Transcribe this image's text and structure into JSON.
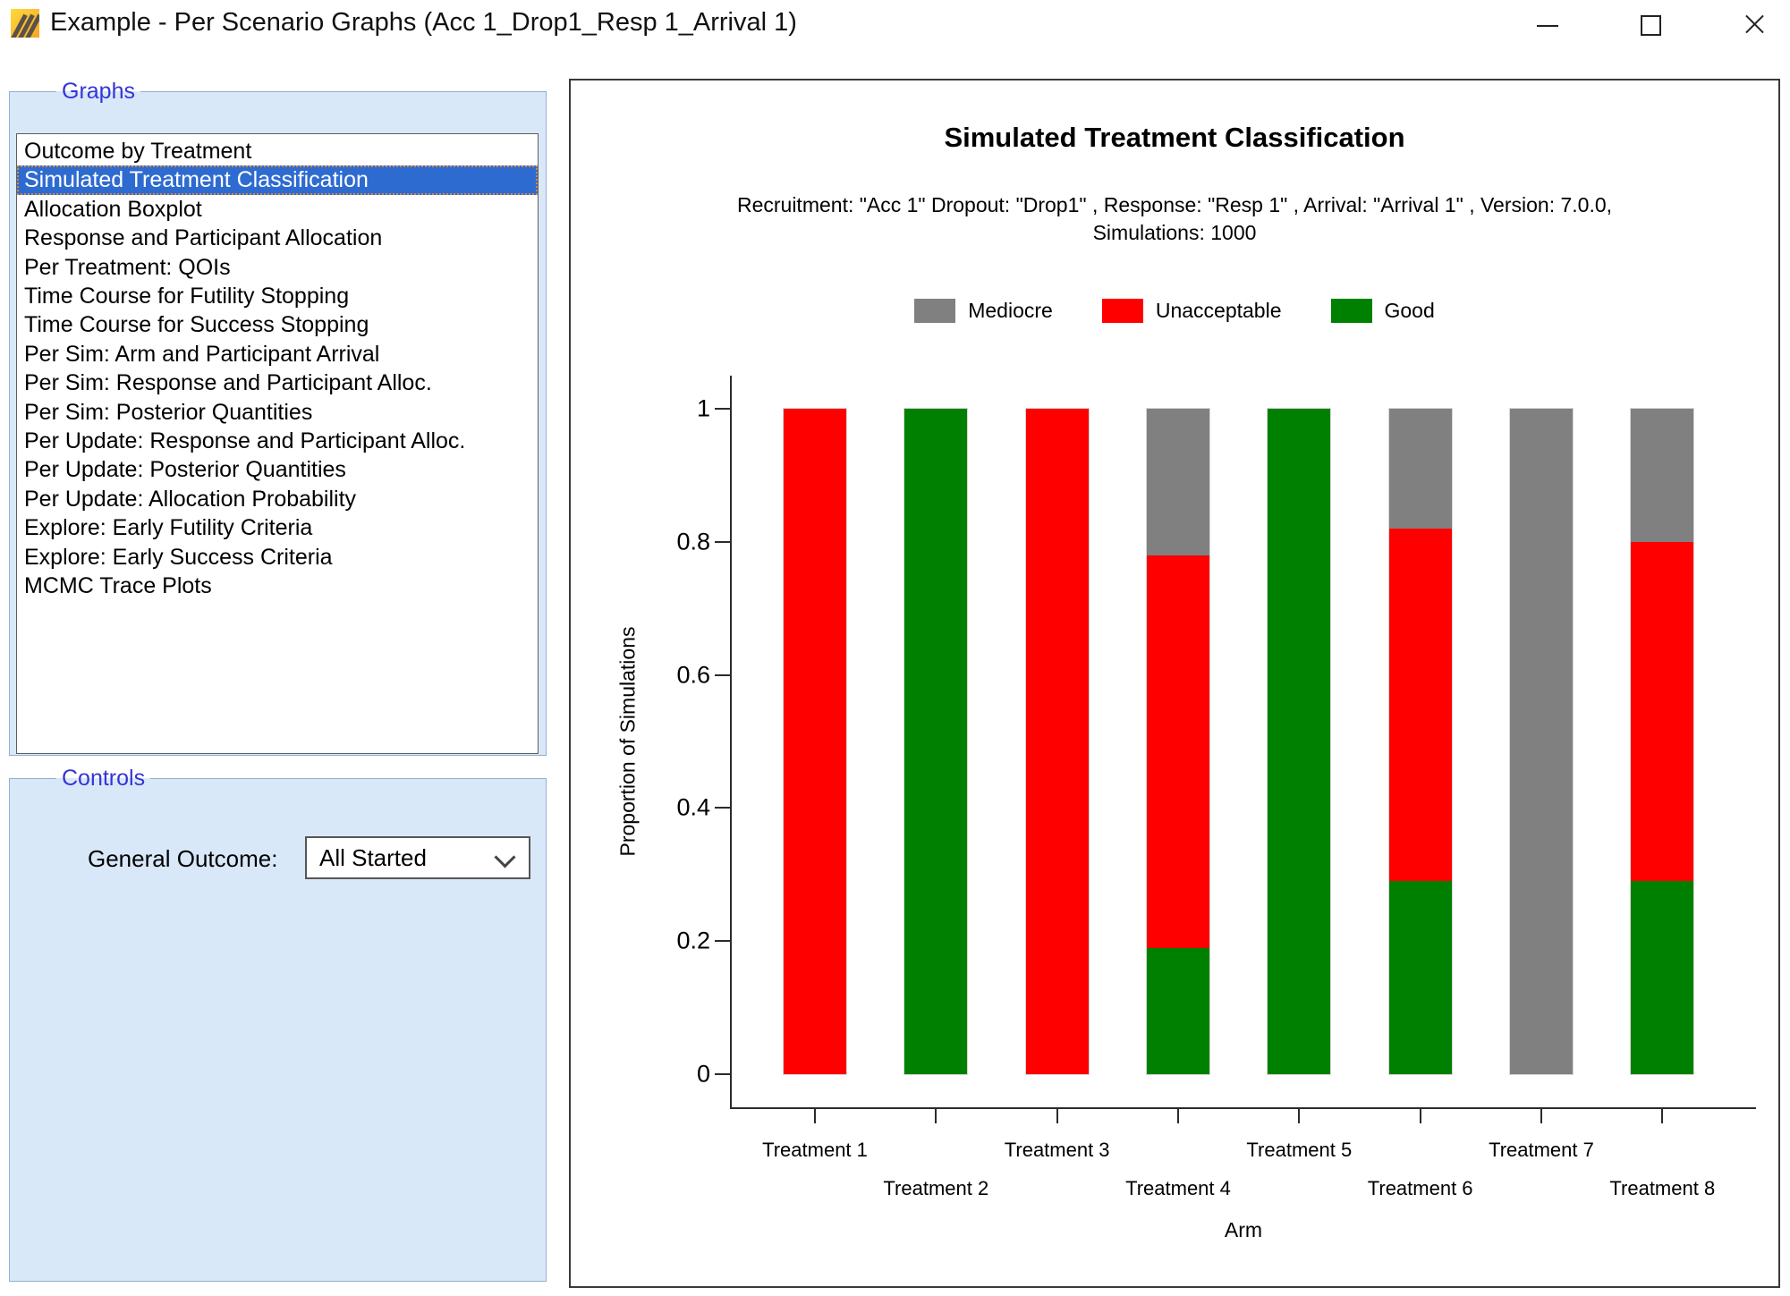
{
  "window": {
    "title": "Example - Per Scenario Graphs (Acc 1_Drop1_Resp 1_Arrival 1)"
  },
  "sidebar": {
    "graphs_label": "Graphs",
    "selected_index": 1,
    "items": [
      "Outcome by Treatment",
      "Simulated Treatment Classification",
      "Allocation Boxplot",
      "Response and Participant Allocation",
      "Per Treatment: QOIs",
      "Time Course for Futility Stopping",
      "Time Course for Success Stopping",
      "Per Sim: Arm and Participant Arrival",
      "Per Sim: Response and Participant Alloc.",
      "Per Sim: Posterior Quantities",
      "Per Update: Response and Participant Alloc.",
      "Per Update: Posterior Quantities",
      "Per Update: Allocation Probability",
      "Explore: Early Futility Criteria",
      "Explore: Early Success Criteria",
      "MCMC Trace Plots"
    ]
  },
  "controls": {
    "label": "Controls",
    "general_outcome_label": "General Outcome:",
    "general_outcome_value": "All Started"
  },
  "chart_data": {
    "type": "bar",
    "stacked": true,
    "title": "Simulated Treatment Classification",
    "subtitle_line1": "Recruitment: \"Acc 1\" Dropout: \"Drop1\" , Response: \"Resp 1\" , Arrival: \"Arrival 1\" , Version: 7.0.0,",
    "subtitle_line2": "Simulations: 1000",
    "xlabel": "Arm",
    "ylabel": "Proportion of Simulations",
    "categories": [
      "Treatment 1",
      "Treatment 2",
      "Treatment 3",
      "Treatment 4",
      "Treatment 5",
      "Treatment 6",
      "Treatment 7",
      "Treatment 8"
    ],
    "series": [
      {
        "name": "Good",
        "color": "#008000",
        "values": [
          0,
          1,
          0,
          0.19,
          1,
          0.29,
          0,
          0.29
        ]
      },
      {
        "name": "Unacceptable",
        "color": "#ff0000",
        "values": [
          1,
          0,
          1,
          0.59,
          0,
          0.53,
          0,
          0.51
        ]
      },
      {
        "name": "Mediocre",
        "color": "#808080",
        "values": [
          0,
          0,
          0,
          0.22,
          0,
          0.18,
          1,
          0.2
        ]
      }
    ],
    "legend_order": [
      "Mediocre",
      "Unacceptable",
      "Good"
    ],
    "ylim": [
      0,
      1
    ],
    "yticks": [
      0,
      0.2,
      0.4,
      0.6,
      0.8,
      1
    ],
    "ytick_labels": [
      "0",
      "0.2",
      "0.4",
      "0.6",
      "0.8",
      "1"
    ],
    "grid": false,
    "legend_position": "top"
  }
}
